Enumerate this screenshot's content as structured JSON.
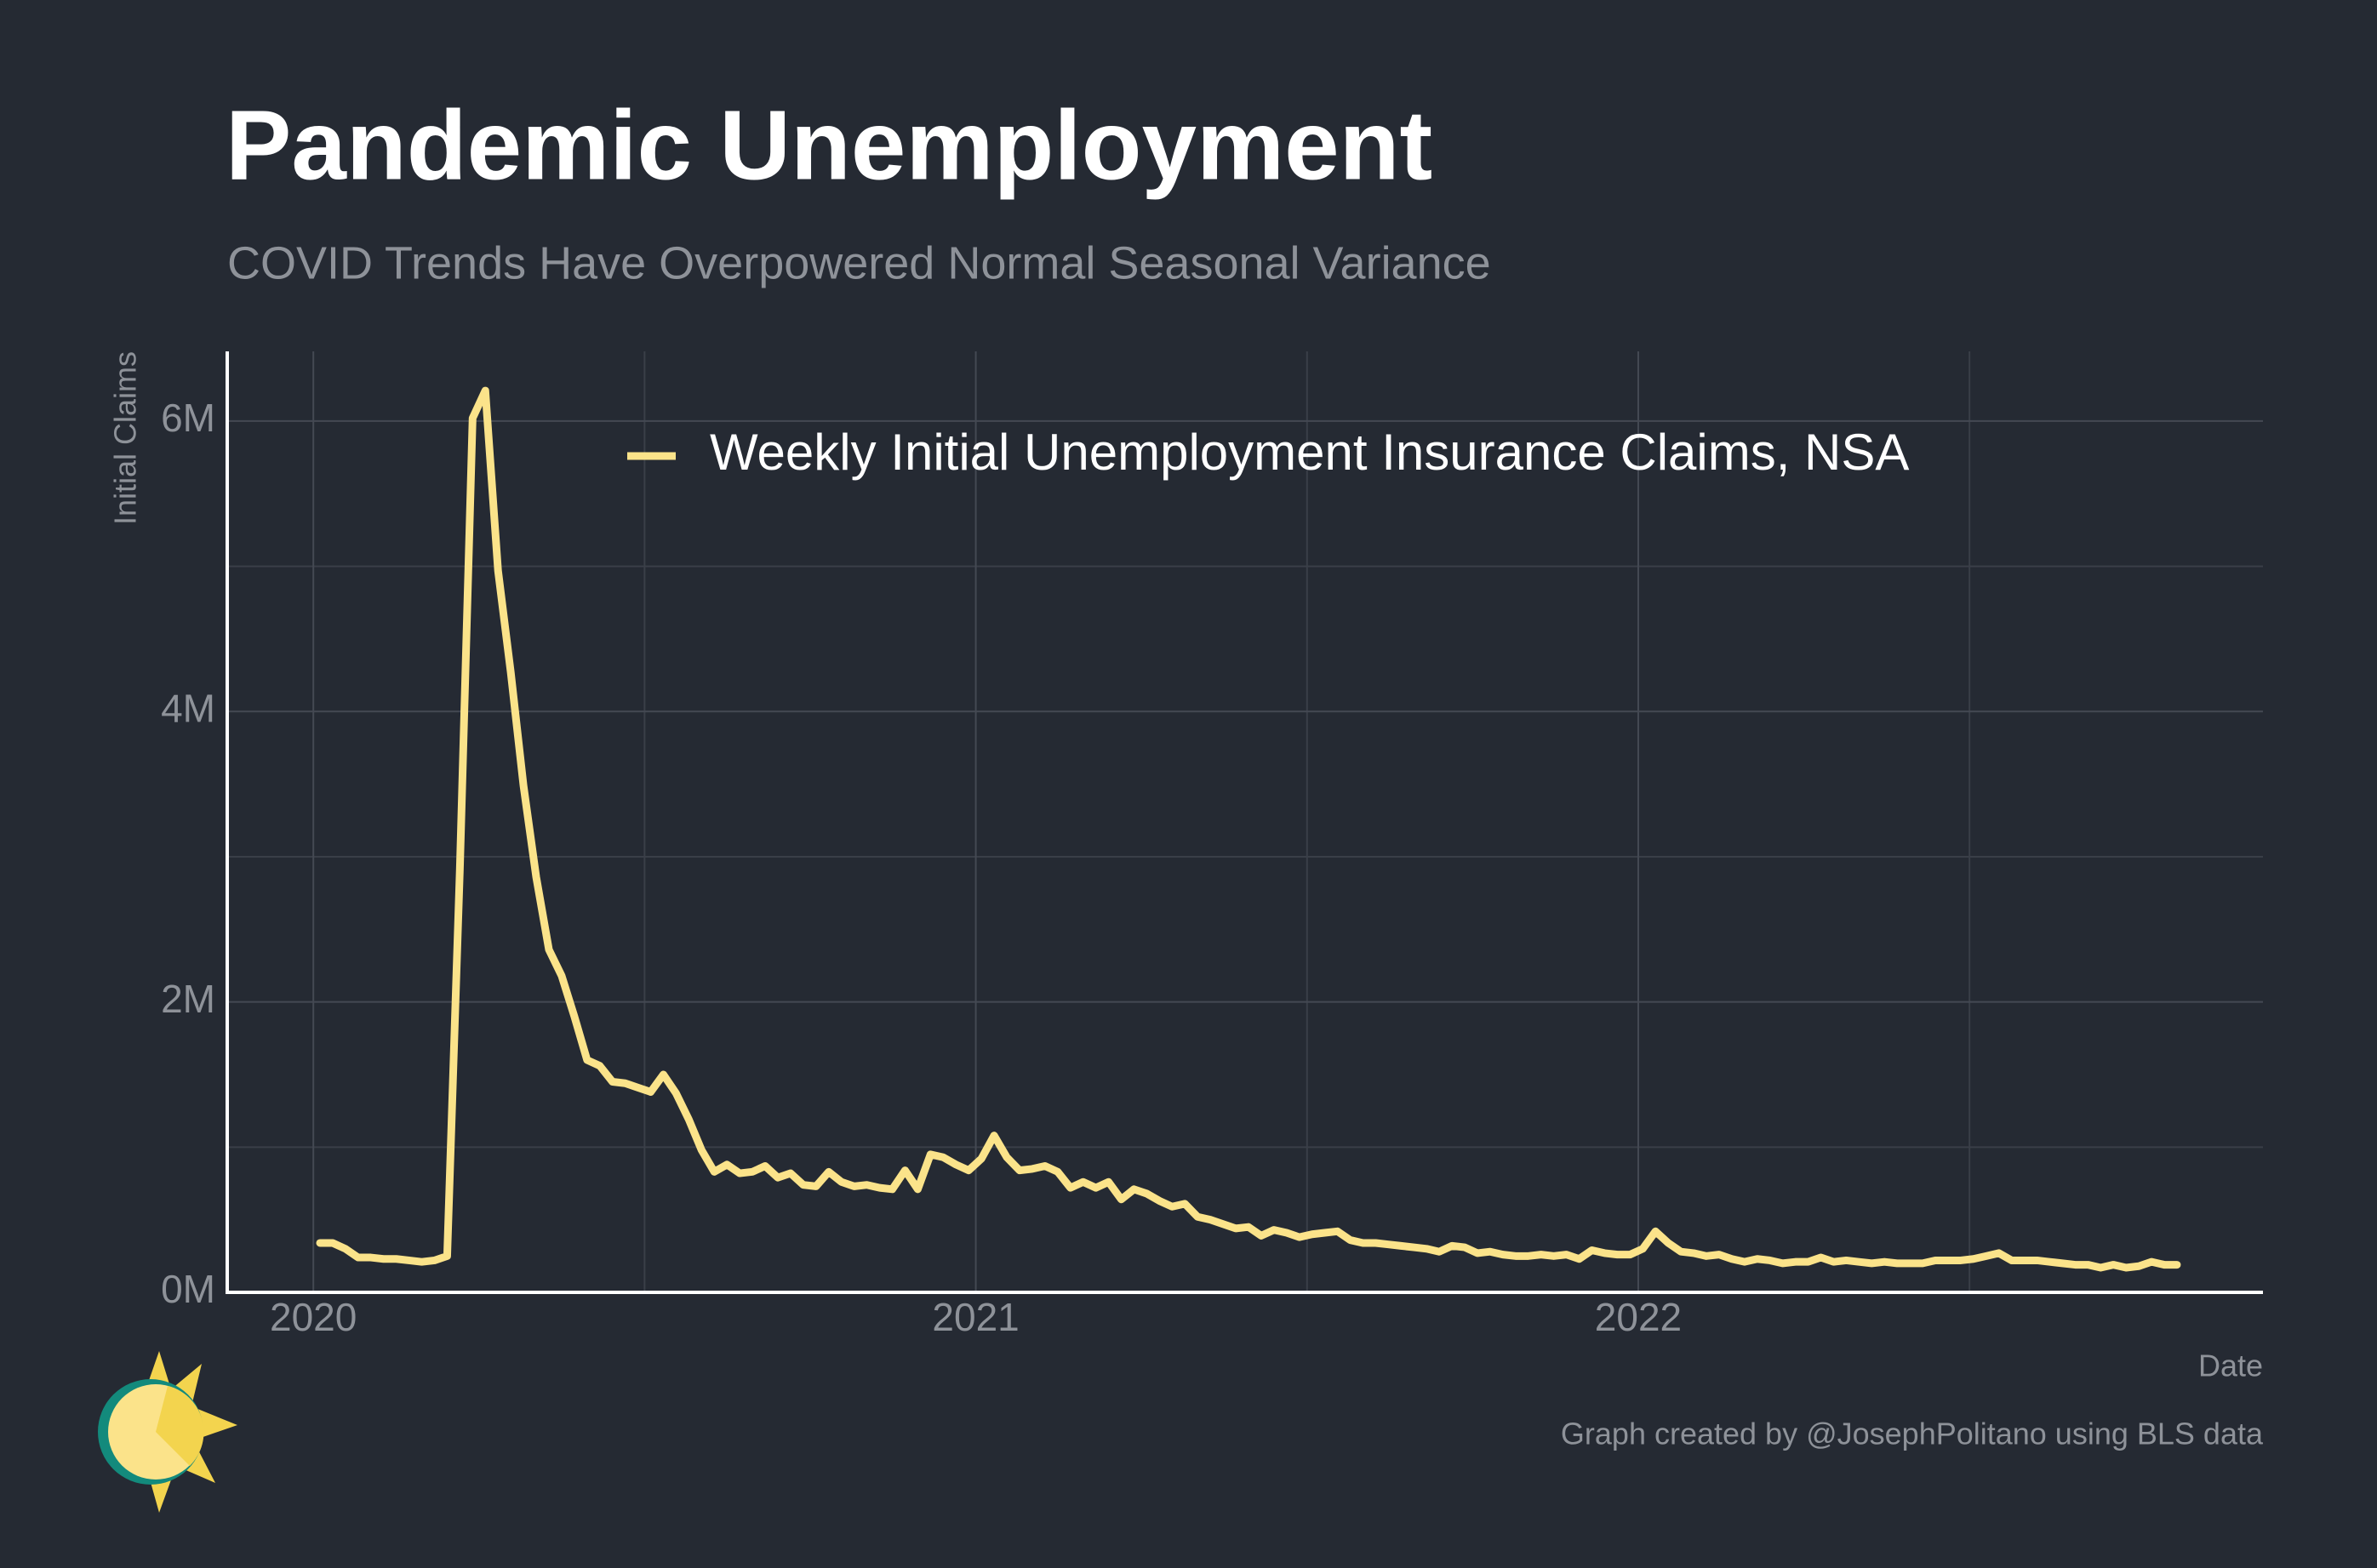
{
  "chart_data": {
    "type": "line",
    "title": "Pandemic Unemployment",
    "subtitle": "COVID Trends Have Overpowered Normal Seasonal Variance",
    "y_label": "Initial Claims",
    "x_label": "Date",
    "caption": "Graph created by @JosephPolitano using BLS data",
    "x": [
      2020.01,
      2020.0292,
      2020.0484,
      2020.0676,
      2020.0868,
      2020.106,
      2020.1252,
      2020.1444,
      2020.1636,
      2020.1828,
      2020.202,
      2020.2212,
      2020.2404,
      2020.2596,
      2020.2788,
      2020.298,
      2020.3172,
      2020.3364,
      2020.3556,
      2020.3748,
      2020.394,
      2020.4132,
      2020.4324,
      2020.4516,
      2020.4708,
      2020.49,
      2020.5092,
      2020.5284,
      2020.5476,
      2020.5668,
      2020.586,
      2020.6052,
      2020.6244,
      2020.6436,
      2020.6628,
      2020.682,
      2020.7012,
      2020.7204,
      2020.7396,
      2020.7588,
      2020.778,
      2020.7972,
      2020.8164,
      2020.8356,
      2020.8548,
      2020.874,
      2020.8932,
      2020.9124,
      2020.9316,
      2020.9508,
      2020.97,
      2020.9892,
      2021.0084,
      2021.0276,
      2021.0468,
      2021.066,
      2021.0852,
      2021.1044,
      2021.1236,
      2021.1428,
      2021.162,
      2021.1812,
      2021.2004,
      2021.2196,
      2021.2388,
      2021.258,
      2021.2772,
      2021.2964,
      2021.3156,
      2021.3348,
      2021.354,
      2021.3732,
      2021.3924,
      2021.4116,
      2021.4308,
      2021.45,
      2021.4692,
      2021.4884,
      2021.5076,
      2021.5268,
      2021.546,
      2021.5652,
      2021.5844,
      2021.6036,
      2021.6228,
      2021.642,
      2021.6612,
      2021.6804,
      2021.6996,
      2021.7188,
      2021.738,
      2021.7572,
      2021.7764,
      2021.7956,
      2021.8148,
      2021.834,
      2021.8532,
      2021.8724,
      2021.8916,
      2021.9108,
      2021.93,
      2021.9492,
      2021.9684,
      2021.9876,
      2022.0068,
      2022.026,
      2022.0452,
      2022.0644,
      2022.0836,
      2022.1028,
      2022.122,
      2022.1412,
      2022.1604,
      2022.1796,
      2022.1988,
      2022.218,
      2022.2372,
      2022.2564,
      2022.2756,
      2022.2948,
      2022.314,
      2022.3332,
      2022.3524,
      2022.3716,
      2022.3908,
      2022.41,
      2022.4292,
      2022.4484,
      2022.4676,
      2022.4868,
      2022.506,
      2022.5252,
      2022.5444,
      2022.5636,
      2022.5828,
      2022.602,
      2022.6212,
      2022.6404,
      2022.6596,
      2022.6788,
      2022.698,
      2022.7172,
      2022.7364,
      2022.7556,
      2022.7748,
      2022.794,
      2022.8132
    ],
    "series": [
      {
        "name": "Weekly Initial Unemployment Insurance Claims, NSA",
        "color": "#fbe38a",
        "values": [
          0.34,
          0.34,
          0.3,
          0.24,
          0.24,
          0.23,
          0.23,
          0.22,
          0.21,
          0.22,
          0.25,
          2.92,
          6.02,
          6.21,
          4.97,
          4.27,
          3.49,
          2.86,
          2.36,
          2.18,
          1.9,
          1.6,
          1.56,
          1.45,
          1.44,
          1.41,
          1.38,
          1.5,
          1.37,
          1.19,
          0.98,
          0.83,
          0.88,
          0.82,
          0.83,
          0.87,
          0.79,
          0.82,
          0.74,
          0.73,
          0.83,
          0.76,
          0.73,
          0.74,
          0.72,
          0.71,
          0.84,
          0.71,
          0.95,
          0.93,
          0.88,
          0.84,
          0.92,
          1.08,
          0.93,
          0.84,
          0.85,
          0.87,
          0.83,
          0.72,
          0.76,
          0.72,
          0.76,
          0.64,
          0.71,
          0.68,
          0.63,
          0.59,
          0.61,
          0.52,
          0.5,
          0.47,
          0.44,
          0.45,
          0.39,
          0.43,
          0.41,
          0.38,
          0.4,
          0.41,
          0.42,
          0.36,
          0.34,
          0.34,
          0.33,
          0.32,
          0.31,
          0.3,
          0.28,
          0.32,
          0.31,
          0.27,
          0.28,
          0.26,
          0.25,
          0.25,
          0.26,
          0.25,
          0.26,
          0.23,
          0.29,
          0.27,
          0.26,
          0.26,
          0.3,
          0.42,
          0.34,
          0.28,
          0.27,
          0.25,
          0.26,
          0.23,
          0.21,
          0.23,
          0.22,
          0.2,
          0.21,
          0.21,
          0.24,
          0.21,
          0.22,
          0.21,
          0.2,
          0.21,
          0.2,
          0.2,
          0.2,
          0.22,
          0.22,
          0.22,
          0.23,
          0.25,
          0.27,
          0.22,
          0.22,
          0.22,
          0.21,
          0.2,
          0.19,
          0.19,
          0.17,
          0.19,
          0.17,
          0.18,
          0.21,
          0.19,
          0.19
        ]
      }
    ],
    "xlim": [
      2019.87,
      2022.943
    ],
    "xticks": [
      2020,
      2021,
      2022
    ],
    "ylim": [
      0,
      6.48
    ],
    "yticks": [
      {
        "value": 0,
        "label": "0M"
      },
      {
        "value": 2,
        "label": "2M"
      },
      {
        "value": 4,
        "label": "4M"
      },
      {
        "value": 6,
        "label": "6M"
      }
    ],
    "grid": true,
    "minor_grid": true
  }
}
